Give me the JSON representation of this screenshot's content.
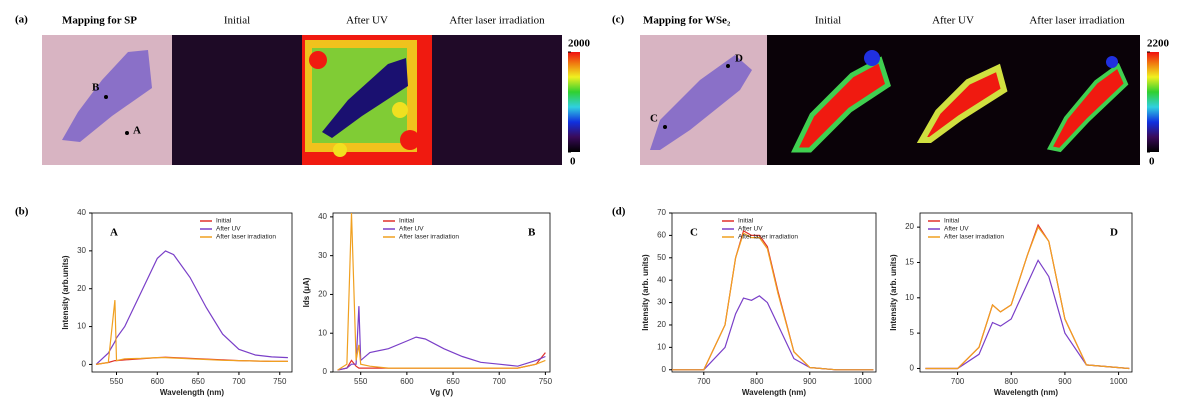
{
  "chart_data": [
    {
      "type": "heatmap",
      "panel_label": "(a)",
      "title": "Mapping for SP",
      "map_titles": [
        "Initial",
        "After UV",
        "After laser irradiation"
      ],
      "point_labels": [
        "B",
        "A"
      ],
      "clim": [
        0,
        2000
      ],
      "cticks": [
        0,
        2000
      ]
    },
    {
      "type": "heatmap",
      "panel_label": "(c)",
      "title": "Mapping for WSe₂",
      "map_titles": [
        "Initial",
        "After UV",
        "After laser irradiation"
      ],
      "point_labels": [
        "C",
        "D"
      ],
      "clim": [
        0,
        2200
      ],
      "cticks": [
        0,
        2200
      ]
    },
    {
      "type": "line",
      "panel_label": "(b)",
      "annotation": "A",
      "xlabel": "Wavelength (nm)",
      "ylabel": "Intensity (arb.units)",
      "x": [
        525,
        540,
        548,
        550,
        560,
        580,
        600,
        610,
        620,
        640,
        660,
        680,
        700,
        720,
        740,
        760
      ],
      "xlim": [
        520,
        765
      ],
      "xticks": [
        550,
        600,
        650,
        700,
        750
      ],
      "ylim": [
        -2,
        40
      ],
      "yticks": [
        0,
        10,
        20,
        30,
        40
      ],
      "legend": "upper right",
      "series": [
        {
          "name": "Initial",
          "color": "#e0302a",
          "values": [
            0,
            0.5,
            1,
            1,
            1.2,
            1.5,
            1.8,
            1.9,
            1.8,
            1.6,
            1.4,
            1.2,
            1,
            0.9,
            0.8,
            0.8
          ]
        },
        {
          "name": "After UV",
          "color": "#7a3fc8",
          "values": [
            0,
            3,
            6,
            7,
            10,
            19,
            28,
            30,
            29,
            23,
            15,
            8,
            4,
            2.5,
            2,
            1.8
          ]
        },
        {
          "name": "After laser irradiation",
          "color": "#f0a020",
          "values": [
            0,
            0.5,
            17,
            1,
            1.5,
            1.6,
            1.8,
            1.8,
            1.7,
            1.5,
            1.3,
            1.1,
            1,
            0.9,
            0.8,
            0.8
          ]
        }
      ]
    },
    {
      "type": "line",
      "annotation": "B",
      "xlabel": "Vg (V)",
      "ylabel": "Ids (μA)",
      "x": [
        525,
        535,
        540,
        545,
        548,
        550,
        560,
        580,
        600,
        610,
        620,
        640,
        660,
        680,
        700,
        720,
        740,
        750
      ],
      "xlim": [
        520,
        755
      ],
      "xticks": [
        550,
        600,
        650,
        700,
        750
      ],
      "ylim": [
        0,
        41
      ],
      "yticks": [
        0,
        10,
        20,
        30,
        40
      ],
      "legend": "upper right",
      "series": [
        {
          "name": "Initial",
          "color": "#e0302a",
          "values": [
            0.5,
            1,
            3,
            1.5,
            1,
            1,
            1,
            1,
            1,
            1,
            1,
            1,
            1,
            1,
            1,
            1,
            2,
            5
          ]
        },
        {
          "name": "After UV",
          "color": "#7a3fc8",
          "values": [
            0.5,
            1,
            2,
            2,
            17,
            3,
            5,
            6,
            8,
            9,
            8.5,
            6,
            4,
            2.5,
            2,
            1.5,
            3,
            4
          ]
        },
        {
          "name": "After laser irradiation",
          "color": "#f0a020",
          "values": [
            0.5,
            2,
            41,
            3,
            7,
            2,
            1.5,
            1,
            1,
            1,
            1,
            1,
            1,
            1,
            1,
            1,
            2,
            3
          ]
        }
      ]
    },
    {
      "type": "line",
      "panel_label": "(d)",
      "annotation": "C",
      "xlabel": "Wavelength (nm)",
      "ylabel": "Intensity (arb. units)",
      "x": [
        640,
        700,
        740,
        760,
        775,
        790,
        805,
        820,
        840,
        870,
        900,
        950,
        1020
      ],
      "xlim": [
        640,
        1025
      ],
      "xticks": [
        700,
        800,
        900,
        1000
      ],
      "ylim": [
        -1,
        70
      ],
      "yticks": [
        0,
        10,
        20,
        30,
        40,
        50,
        60,
        70
      ],
      "legend": "upper right",
      "series": [
        {
          "name": "Initial",
          "color": "#e0302a",
          "values": [
            0,
            0,
            20,
            50,
            62,
            60,
            60,
            55,
            35,
            8,
            1,
            0,
            0
          ]
        },
        {
          "name": "After UV",
          "color": "#7a3fc8",
          "values": [
            0,
            0,
            10,
            25,
            32,
            31,
            33,
            30,
            20,
            5,
            1,
            0,
            0
          ]
        },
        {
          "name": "After laser irradiation",
          "color": "#f0a020",
          "values": [
            0,
            0,
            20,
            50,
            61,
            59,
            59,
            54,
            34,
            8,
            1,
            0,
            0
          ]
        }
      ]
    },
    {
      "type": "line",
      "annotation": "D",
      "xlabel": "Wavelength (nm)",
      "ylabel": "Intensity (arb. units)",
      "x": [
        640,
        700,
        740,
        765,
        780,
        800,
        830,
        850,
        870,
        900,
        940,
        1020
      ],
      "xlim": [
        630,
        1025
      ],
      "xticks": [
        700,
        800,
        900,
        1000
      ],
      "ylim": [
        -0.5,
        22
      ],
      "yticks": [
        0,
        5,
        10,
        15,
        20
      ],
      "legend": "upper left",
      "series": [
        {
          "name": "Initial",
          "color": "#e0302a",
          "values": [
            0,
            0,
            3,
            9,
            8,
            9,
            16,
            20.3,
            18,
            7,
            0.5,
            0
          ]
        },
        {
          "name": "After UV",
          "color": "#7a3fc8",
          "values": [
            0,
            0,
            2,
            6.5,
            6,
            7,
            12,
            15.3,
            13,
            5,
            0.5,
            0
          ]
        },
        {
          "name": "After laser irradiation",
          "color": "#f0a020",
          "values": [
            0,
            0,
            3,
            9,
            8,
            9,
            16,
            20,
            18,
            7,
            0.5,
            0
          ]
        }
      ]
    }
  ]
}
